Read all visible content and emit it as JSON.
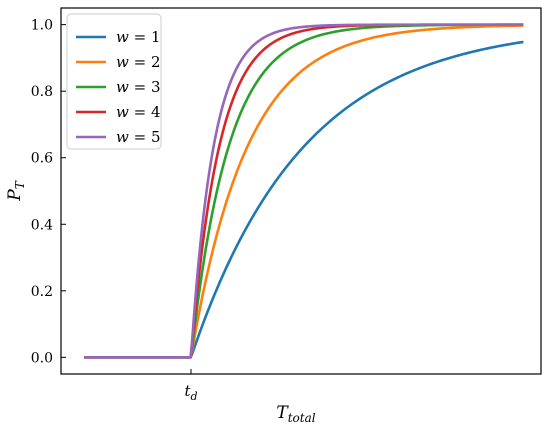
{
  "chart_data": {
    "type": "line",
    "xlabel": {
      "main": "T",
      "sub": "total"
    },
    "ylabel": {
      "main": "P",
      "sub": "T"
    },
    "x_ticks": [
      {
        "label_main": "t",
        "label_sub": "d",
        "value": 0
      }
    ],
    "y_ticks": [
      "0.0",
      "0.2",
      "0.4",
      "0.6",
      "0.8",
      "1.0"
    ],
    "ylim": [
      -0.05,
      1.05
    ],
    "x_domain_description": "x measured in units of t_d offset; before t_d the curves are 0",
    "xlim": [
      -1,
      3.1
    ],
    "curve_start": -0.98,
    "curve_end": 3.05,
    "base_rate": 0.97,
    "legend_position": "upper-left",
    "grid": false,
    "series": [
      {
        "name": "w = 1",
        "legend_var": "w",
        "legend_val": "1",
        "w": 1,
        "color": "#1f77b4"
      },
      {
        "name": "w = 2",
        "legend_var": "w",
        "legend_val": "2",
        "w": 2,
        "color": "#ff7f0e"
      },
      {
        "name": "w = 3",
        "legend_var": "w",
        "legend_val": "3",
        "w": 3,
        "color": "#2ca02c"
      },
      {
        "name": "w = 4",
        "legend_var": "w",
        "legend_val": "4",
        "w": 4,
        "color": "#d62728"
      },
      {
        "name": "w = 5",
        "legend_var": "w",
        "legend_val": "5",
        "w": 5,
        "color": "#9467bd"
      }
    ]
  }
}
